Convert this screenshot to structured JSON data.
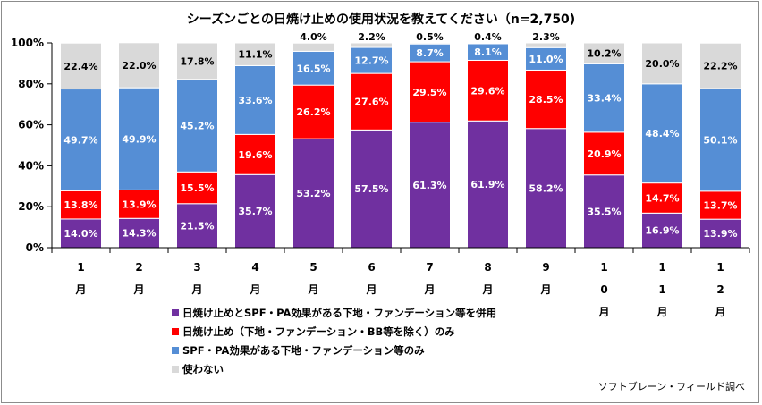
{
  "chart_data": {
    "type": "bar",
    "stacked": true,
    "percent": true,
    "title": "シーズンごとの日焼け止めの使用状況を教えてください（n=2,750)",
    "categories": [
      "1月",
      "2月",
      "3月",
      "4月",
      "5月",
      "6月",
      "7月",
      "8月",
      "9月",
      "10月",
      "11月",
      "12月"
    ],
    "category_label_lines": [
      [
        "1",
        "月"
      ],
      [
        "2",
        "月"
      ],
      [
        "3",
        "月"
      ],
      [
        "4",
        "月"
      ],
      [
        "5",
        "月"
      ],
      [
        "6",
        "月"
      ],
      [
        "7",
        "月"
      ],
      [
        "8",
        "月"
      ],
      [
        "9",
        "月"
      ],
      [
        "1",
        "0",
        "月"
      ],
      [
        "1",
        "1",
        "月"
      ],
      [
        "1",
        "2",
        "月"
      ]
    ],
    "series": [
      {
        "name": "日焼け止めとSPF・PA効果がある下地・ファンデーション等を併用",
        "color": "#7030a0",
        "values": [
          14.0,
          14.3,
          21.5,
          35.7,
          53.2,
          57.5,
          61.3,
          61.9,
          58.2,
          35.5,
          16.9,
          13.9
        ],
        "labels": [
          "14.0%",
          "14.3%",
          "21.5%",
          "35.7%",
          "53.2%",
          "57.5%",
          "61.3%",
          "61.9%",
          "58.2%",
          "35.5%",
          "16.9%",
          "13.9%"
        ]
      },
      {
        "name": "日焼け止め（下地・ファンデーション・BB等を除く）のみ",
        "color": "#ff0000",
        "values": [
          13.8,
          13.9,
          15.5,
          19.6,
          26.2,
          27.6,
          29.5,
          29.6,
          28.5,
          20.9,
          14.7,
          13.7
        ],
        "labels": [
          "13.8%",
          "13.9%",
          "15.5%",
          "19.6%",
          "26.2%",
          "27.6%",
          "29.5%",
          "29.6%",
          "28.5%",
          "20.9%",
          "14.7%",
          "13.7%"
        ]
      },
      {
        "name": "SPF・PA効果がある下地・ファンデーション等のみ",
        "color": "#558ed5",
        "values": [
          49.7,
          49.9,
          45.2,
          33.6,
          16.5,
          12.7,
          8.7,
          8.1,
          11.0,
          33.4,
          48.4,
          50.1
        ],
        "labels": [
          "49.7%",
          "49.9%",
          "45.2%",
          "33.6%",
          "16.5%",
          "12.7%",
          "8.7%",
          "8.1%",
          "11.0%",
          "33.4%",
          "48.4%",
          "50.1%"
        ]
      },
      {
        "name": "使わない",
        "color": "#d9d9d9",
        "values": [
          22.4,
          22.0,
          17.8,
          11.1,
          4.0,
          2.2,
          0.5,
          0.4,
          2.3,
          10.2,
          20.0,
          22.2
        ],
        "labels": [
          "22.4%",
          "22.0%",
          "17.8%",
          "11.1%",
          "4.0%",
          "2.2%",
          "0.5%",
          "0.4%",
          "2.3%",
          "10.2%",
          "20.0%",
          "22.2%"
        ]
      }
    ],
    "y_ticks": [
      "0%",
      "20%",
      "40%",
      "60%",
      "80%",
      "100%"
    ],
    "ylim": [
      0,
      100
    ],
    "grid": false,
    "legend_position": "bottom"
  },
  "source": "ソフトブレーン・フィールド調べ"
}
